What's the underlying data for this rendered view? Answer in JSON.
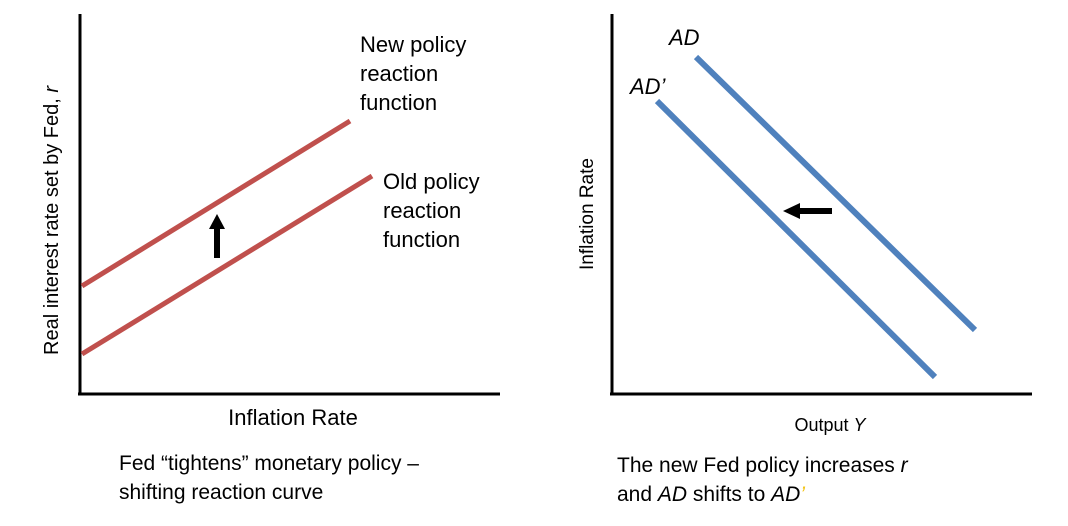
{
  "left_panel": {
    "y_axis_label": "Real interest rate set by Fed, ",
    "y_axis_label_var": "r",
    "x_axis_label": "Inflation Rate",
    "new_curve_label": [
      "New policy",
      "reaction",
      "function"
    ],
    "old_curve_label": [
      "Old policy",
      "reaction",
      "function"
    ],
    "caption": [
      "Fed “tightens” monetary policy –",
      "shifting reaction curve"
    ],
    "curve_color": "#c0504d",
    "shift_direction": "up"
  },
  "right_panel": {
    "y_axis_label": "Inflation Rate",
    "x_axis_label": "Output ",
    "x_axis_label_var": "Y",
    "ad_label": "AD",
    "ad_prime_label": "AD’",
    "caption_line1": "The new Fed policy increases ",
    "caption_line1_var": "r",
    "caption_line2_a": "and ",
    "caption_line2_ad": "AD",
    "caption_line2_b": " shifts to ",
    "caption_line2_ad2": "AD",
    "caption_line2_prime": "’",
    "curve_color": "#4f81bd",
    "prime_color": "#f2c314",
    "shift_direction": "left"
  }
}
